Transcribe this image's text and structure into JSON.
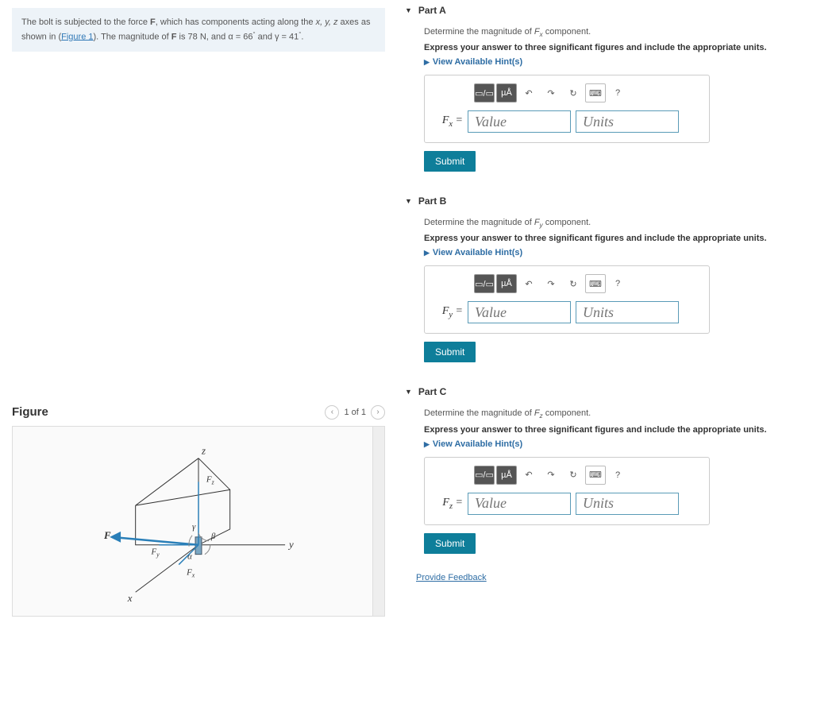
{
  "problem": {
    "text_prefix": "The bolt is subjected to the force ",
    "force_sym": "F",
    "text_mid1": ", which has components acting along the ",
    "axes": "x, y, z",
    "text_mid2": " axes as shown in (",
    "figure_link": "Figure 1",
    "text_mid3": "). The magnitude of ",
    "force_sym2": "F",
    "text_mid4": " is 78 ",
    "unit": "N",
    "text_mid5": ", and α = 66",
    "deg1": "°",
    "text_mid6": " and γ = 41",
    "deg2": "°",
    "text_end": "."
  },
  "figure": {
    "title": "Figure",
    "pager_label": "1 of 1",
    "labels": {
      "x": "x",
      "y": "y",
      "z": "z",
      "F": "F",
      "Fx": "Fₓ",
      "Fy": "F_y",
      "Fz": "F_z",
      "alpha": "α",
      "beta": "β",
      "gamma": "γ"
    }
  },
  "parts": [
    {
      "id": "A",
      "title": "Part A",
      "prompt_pre": "Determine the magnitude of ",
      "prompt_var": "Fₓ",
      "prompt_post": " component.",
      "express": "Express your answer to three significant figures and include the appropriate units.",
      "hints": "View Available Hint(s)",
      "var_label": "Fₓ =",
      "value_ph": "Value",
      "units_ph": "Units",
      "submit": "Submit"
    },
    {
      "id": "B",
      "title": "Part B",
      "prompt_pre": "Determine the magnitude of ",
      "prompt_var": "F_y",
      "prompt_post": " component.",
      "express": "Express your answer to three significant figures and include the appropriate units.",
      "hints": "View Available Hint(s)",
      "var_label": "F_y =",
      "value_ph": "Value",
      "units_ph": "Units",
      "submit": "Submit"
    },
    {
      "id": "C",
      "title": "Part C",
      "prompt_pre": "Determine the magnitude of ",
      "prompt_var": "F_z",
      "prompt_post": " component.",
      "express": "Express your answer to three significant figures and include the appropriate units.",
      "hints": "View Available Hint(s)",
      "var_label": "F_z =",
      "value_ph": "Value",
      "units_ph": "Units",
      "submit": "Submit"
    }
  ],
  "toolbar": {
    "frac": "▭/▭",
    "micro": "µÅ",
    "undo": "↶",
    "redo": "↷",
    "reset": "↻",
    "keyboard": "⌨",
    "help": "?"
  },
  "feedback": "Provide Feedback",
  "colors": {
    "accent": "#0e7e9a",
    "link": "#2e6da4",
    "input_border": "#5a9bb7",
    "problem_bg": "#edf3f8"
  }
}
